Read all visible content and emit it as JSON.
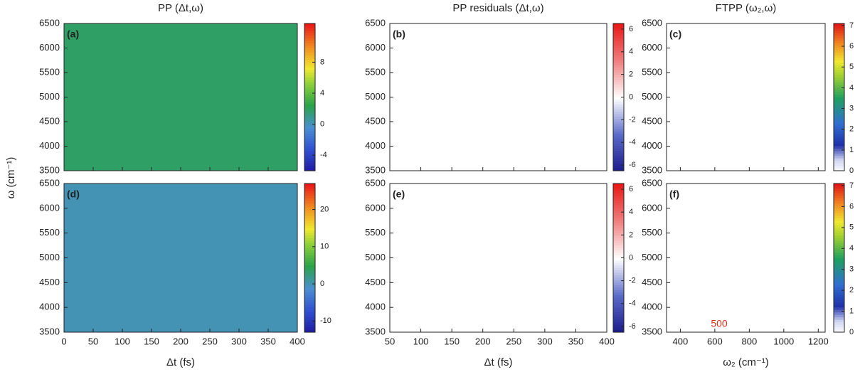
{
  "chart_data": [
    {
      "type": "heatmap",
      "title": "PP (Δt,ω)",
      "panel_label": "(a)",
      "ylabel": "ω (cm⁻¹)",
      "colormap": "jet",
      "xlim": [
        0,
        400
      ],
      "xticks": [
        0,
        50,
        100,
        150,
        200,
        250,
        300,
        350,
        400
      ],
      "ylim": [
        3500,
        6500
      ],
      "yticks": [
        3500,
        4000,
        4500,
        5000,
        5500,
        6000,
        6500
      ],
      "clim": [
        -6,
        13
      ],
      "cticks": [
        -4,
        0,
        4,
        8
      ]
    },
    {
      "type": "heatmap",
      "title": "PP residuals (Δt,ω)",
      "panel_label": "(b)",
      "colormap": "bwr",
      "xlim": [
        50,
        400
      ],
      "xticks": [
        50,
        100,
        150,
        200,
        250,
        300,
        350,
        400
      ],
      "ylim": [
        3500,
        6500
      ],
      "yticks": [
        3500,
        4000,
        4500,
        5000,
        5500,
        6000,
        6500
      ],
      "clim": [
        -6.5,
        6.5
      ],
      "cticks": [
        -6,
        -4,
        -2,
        0,
        2,
        4,
        6
      ]
    },
    {
      "type": "heatmap",
      "title": "FTPP (ω₂,ω)",
      "panel_label": "(c)",
      "colormap": "white-jet",
      "xlim": [
        320,
        1240
      ],
      "xticks": [
        400,
        600,
        800,
        1000,
        1200
      ],
      "ylim": [
        3500,
        6500
      ],
      "yticks": [
        3500,
        4000,
        4500,
        5000,
        5500,
        6000,
        6500
      ],
      "clim": [
        0,
        7.1
      ],
      "cticks": [
        0,
        1,
        2,
        3,
        4,
        5,
        6,
        7
      ]
    },
    {
      "type": "heatmap",
      "panel_label": "(d)",
      "xlabel": "Δt (fs)",
      "colormap": "jet",
      "xlim": [
        0,
        400
      ],
      "xticks": [
        0,
        50,
        100,
        150,
        200,
        250,
        300,
        350,
        400
      ],
      "ylim": [
        3500,
        6500
      ],
      "yticks": [
        3500,
        4000,
        4500,
        5000,
        5500,
        6000,
        6500
      ],
      "clim": [
        -13,
        27
      ],
      "cticks": [
        -10,
        0,
        10,
        20
      ]
    },
    {
      "type": "heatmap",
      "panel_label": "(e)",
      "xlabel": "Δt (fs)",
      "colormap": "bwr",
      "xlim": [
        50,
        400
      ],
      "xticks": [
        50,
        100,
        150,
        200,
        250,
        300,
        350,
        400
      ],
      "ylim": [
        3500,
        6500
      ],
      "yticks": [
        3500,
        4000,
        4500,
        5000,
        5500,
        6000,
        6500
      ],
      "clim": [
        -6.5,
        6.5
      ],
      "cticks": [
        -6,
        -4,
        -2,
        0,
        2,
        4,
        6
      ]
    },
    {
      "type": "heatmap",
      "panel_label": "(f)",
      "xlabel": "ω₂ (cm⁻¹)",
      "annotation": "500",
      "colormap": "white-jet",
      "xlim": [
        320,
        1240
      ],
      "xticks": [
        400,
        600,
        800,
        1000,
        1200
      ],
      "ylim": [
        3500,
        6500
      ],
      "yticks": [
        3500,
        4000,
        4500,
        5000,
        5500,
        6000,
        6500
      ],
      "clim": [
        0,
        7.1
      ],
      "cticks": [
        0,
        1,
        2,
        3,
        4,
        5,
        6,
        7
      ]
    }
  ]
}
